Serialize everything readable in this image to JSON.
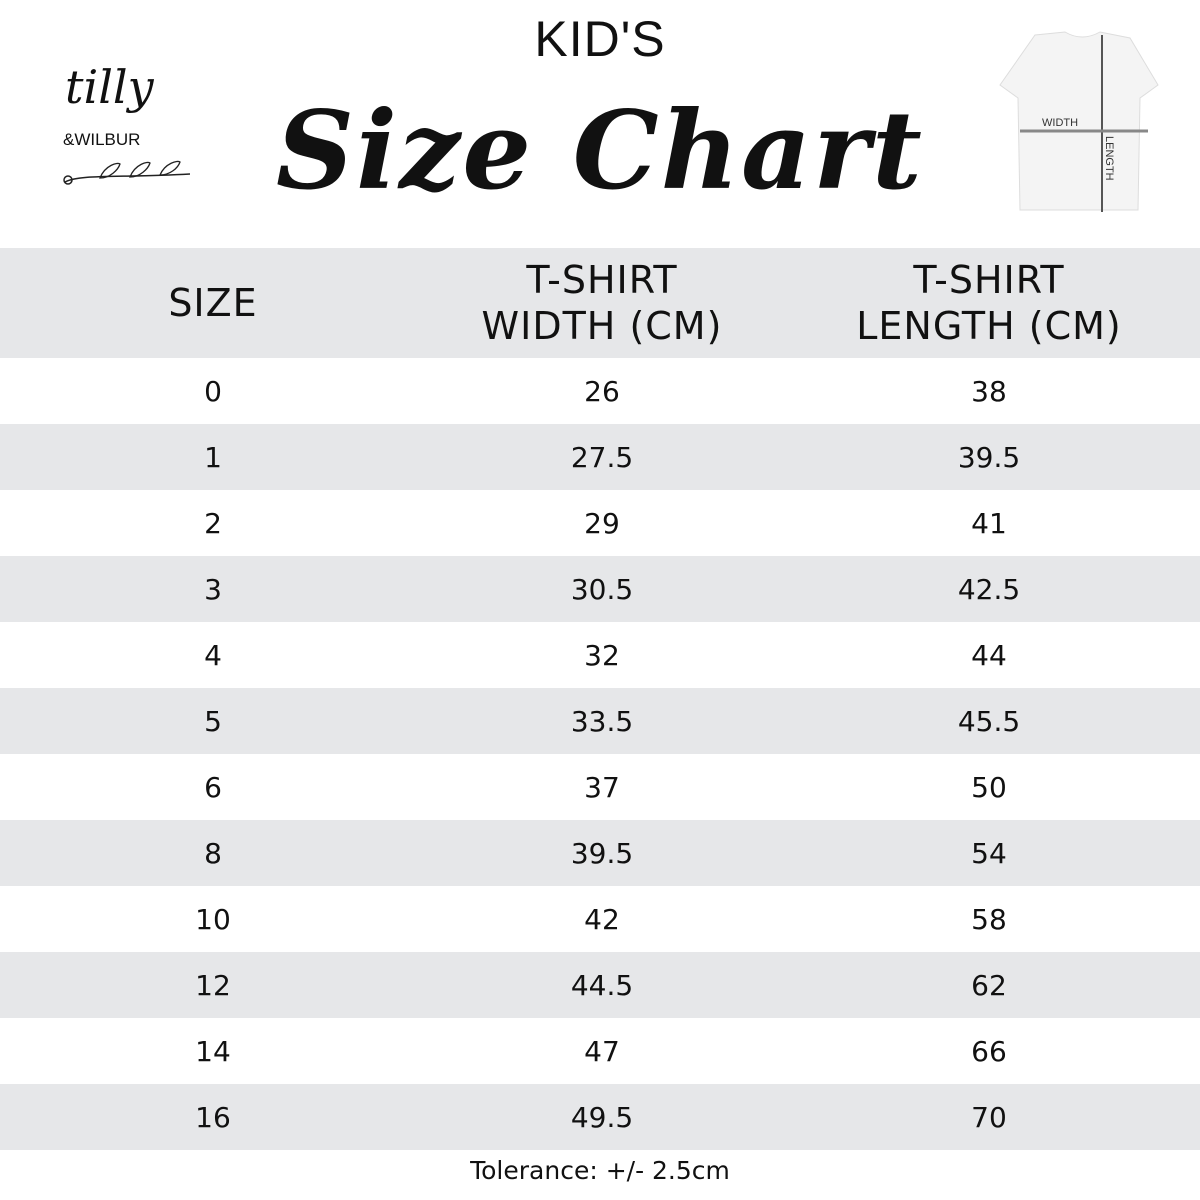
{
  "header": {
    "pre_title": "KID'S",
    "title": "Size Chart"
  },
  "logo": {
    "line1": "tilly",
    "line2": "&WILBUR"
  },
  "diagram": {
    "width_label": "WIDTH",
    "length_label": "LENGTH"
  },
  "table": {
    "columns": [
      "SIZE",
      "T-SHIRT\nWIDTH (CM)",
      "T-SHIRT\nLENGTH (CM)"
    ],
    "rows": [
      [
        "0",
        "26",
        "38"
      ],
      [
        "1",
        "27.5",
        "39.5"
      ],
      [
        "2",
        "29",
        "41"
      ],
      [
        "3",
        "30.5",
        "42.5"
      ],
      [
        "4",
        "32",
        "44"
      ],
      [
        "5",
        "33.5",
        "45.5"
      ],
      [
        "6",
        "37",
        "50"
      ],
      [
        "8",
        "39.5",
        "54"
      ],
      [
        "10",
        "42",
        "58"
      ],
      [
        "12",
        "44.5",
        "62"
      ],
      [
        "14",
        "47",
        "66"
      ],
      [
        "16",
        "49.5",
        "70"
      ]
    ]
  },
  "footer": {
    "tolerance": "Tolerance: +/- 2.5cm"
  },
  "colors": {
    "row_alt": "#e6e7e9",
    "text": "#111111"
  }
}
